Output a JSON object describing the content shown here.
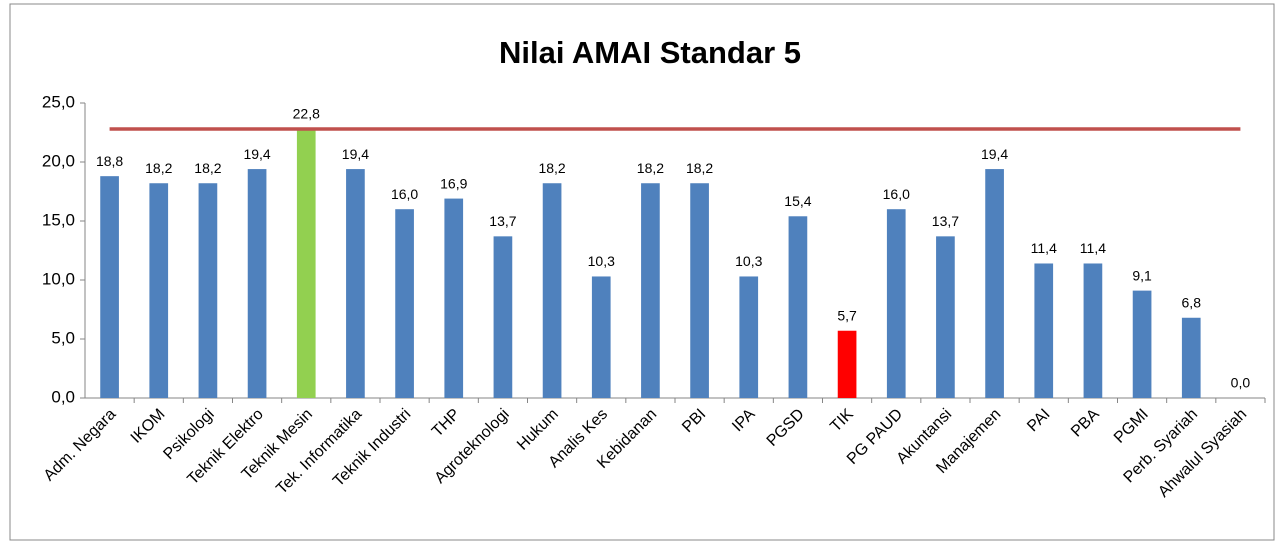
{
  "chart_data": {
    "type": "bar",
    "title": "Nilai AMAI Standar 5",
    "categories": [
      "Adm. Negara",
      "IKOM",
      "Psikologi",
      "Teknik Elektro",
      "Teknik Mesin",
      "Tek. Informatika",
      "Teknik Industri",
      "THP",
      "Agroteknologi",
      "Hukum",
      "Analis Kes",
      "Kebidanan",
      "PBI",
      "IPA",
      "PGSD",
      "TIK",
      "PG PAUD",
      "Akuntansi",
      "Manajemen",
      "PAI",
      "PBA",
      "PGMI",
      "Perb. Syariah",
      "Ahwalul Syasiah"
    ],
    "values": [
      18.8,
      18.2,
      18.2,
      19.4,
      22.8,
      19.4,
      16.0,
      16.9,
      13.7,
      18.2,
      10.3,
      18.2,
      18.2,
      10.3,
      15.4,
      5.7,
      16.0,
      13.7,
      19.4,
      11.4,
      11.4,
      9.1,
      6.8,
      0.0
    ],
    "value_labels": [
      "18,8",
      "18,2",
      "18,2",
      "19,4",
      "22,8",
      "19,4",
      "16,0",
      "16,9",
      "13,7",
      "18,2",
      "10,3",
      "18,2",
      "18,2",
      "10,3",
      "15,4",
      "5,7",
      "16,0",
      "13,7",
      "19,4",
      "11,4",
      "11,4",
      "9,1",
      "6,8",
      "0,0"
    ],
    "colors": [
      "#4f81bd",
      "#4f81bd",
      "#4f81bd",
      "#4f81bd",
      "#92d050",
      "#4f81bd",
      "#4f81bd",
      "#4f81bd",
      "#4f81bd",
      "#4f81bd",
      "#4f81bd",
      "#4f81bd",
      "#4f81bd",
      "#4f81bd",
      "#4f81bd",
      "#ff0000",
      "#4f81bd",
      "#4f81bd",
      "#4f81bd",
      "#4f81bd",
      "#4f81bd",
      "#4f81bd",
      "#4f81bd",
      "#4f81bd"
    ],
    "reference_line": {
      "value": 22.8,
      "color": "#c0504d"
    },
    "ylim": [
      0,
      25
    ],
    "yticks": [
      {
        "value": 0,
        "label": "0,0"
      },
      {
        "value": 5,
        "label": "5,0"
      },
      {
        "value": 10,
        "label": "10,0"
      },
      {
        "value": 15,
        "label": "15,0"
      },
      {
        "value": 20,
        "label": "20,0"
      },
      {
        "value": 25,
        "label": "25,0"
      }
    ],
    "grid": false
  }
}
